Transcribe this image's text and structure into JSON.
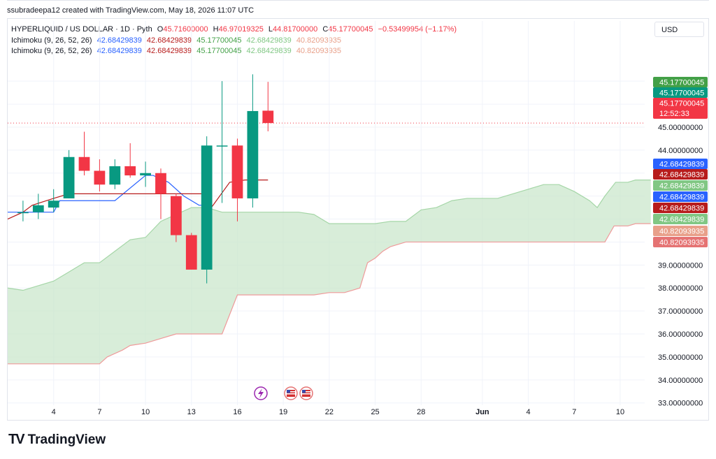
{
  "credit": "ssubradeepa12 created with TradingView.com, May 18, 2026 11:07 UTC",
  "currency_button": "USD",
  "brand": {
    "logo": "TV",
    "name": "TradingView"
  },
  "legend": {
    "symbol": "HYPERLIQUID / US DOLLAR · 1D · Pyth",
    "ohlc": [
      {
        "key": "O",
        "value": "45.71600000"
      },
      {
        "key": "H",
        "value": "46.97019325"
      },
      {
        "key": "L",
        "value": "44.81700000"
      },
      {
        "key": "C",
        "value": "45.17700045"
      }
    ],
    "change": "−0.53499954 (−1.17%)",
    "indicators": [
      {
        "name": "Ichimoku (9, 26, 52, 26)",
        "values": [
          "42.68429839",
          "42.68429839",
          "45.17700045",
          "42.68429839",
          "40.82093935"
        ]
      },
      {
        "name": "Ichimoku (9, 26, 52, 26)",
        "values": [
          "42.68429839",
          "42.68429839",
          "45.17700045",
          "42.68429839",
          "40.82093935"
        ]
      }
    ]
  },
  "colors": {
    "up": "#089981",
    "down": "#f23645",
    "tenkan": "#2962ff",
    "kijun": "#b71c1c",
    "chikou": "#43a047",
    "span_a": "#a5d6a7",
    "span_b": "#ef9a9a",
    "cloud": "#c8e6c9",
    "legend_ohlc": "#f23645",
    "legend_symbol": "#131722"
  },
  "price_labels": [
    {
      "text": "45.17700045",
      "color": "#43a047"
    },
    {
      "text": "45.17700045",
      "color": "#089981"
    },
    {
      "text": "45.17700045",
      "sub": "12:52:33",
      "color": "#f23645"
    },
    {
      "text": "42.68429839",
      "color": "#2962ff"
    },
    {
      "text": "42.68429839",
      "color": "#b71c1c"
    },
    {
      "text": "42.68429839",
      "color": "#81c784"
    },
    {
      "text": "42.68429839",
      "color": "#2962ff"
    },
    {
      "text": "42.68429839",
      "color": "#b71c1c"
    },
    {
      "text": "42.68429839",
      "color": "#81c784"
    },
    {
      "text": "40.82093935",
      "color": "#e8a08a"
    },
    {
      "text": "40.82093935",
      "color": "#e57373"
    }
  ],
  "chart_data": {
    "type": "candlestick",
    "title": "HYPERLIQUID / US DOLLAR · 1D · Pyth",
    "y_ticks": [
      33,
      34,
      35,
      36,
      37,
      38,
      39,
      40,
      41,
      42,
      43,
      44,
      45,
      46,
      47
    ],
    "y_tick_labels": [
      "33.00000000",
      "34.00000000",
      "35.00000000",
      "36.00000000",
      "37.00000000",
      "38.00000000",
      "39.00000000",
      "40.00000000",
      "41.00000000",
      "42.00000000",
      "43.00000000",
      "44.00000000",
      "45.00000000",
      "46.00000000",
      "47.00000000"
    ],
    "ylim": [
      32.9,
      48.1
    ],
    "x_ticks": [
      "4",
      "7",
      "10",
      "13",
      "16",
      "19",
      "22",
      "25",
      "28",
      "Jun",
      "4",
      "7",
      "10"
    ],
    "x_tick_days": [
      4,
      7,
      10,
      13,
      16,
      19,
      22,
      25,
      28,
      32,
      35,
      38,
      41
    ],
    "xlim": [
      1,
      42.6
    ],
    "candles": [
      {
        "day": 2,
        "o": 41.3,
        "h": 41.8,
        "l": 40.9,
        "c": 41.3
      },
      {
        "day": 3,
        "o": 41.3,
        "h": 42.1,
        "l": 41.0,
        "c": 41.6
      },
      {
        "day": 4,
        "o": 41.5,
        "h": 42.3,
        "l": 41.3,
        "c": 41.8
      },
      {
        "day": 5,
        "o": 41.9,
        "h": 44.0,
        "l": 41.9,
        "c": 43.7
      },
      {
        "day": 6,
        "o": 43.7,
        "h": 44.8,
        "l": 42.9,
        "c": 43.1
      },
      {
        "day": 7,
        "o": 43.1,
        "h": 43.6,
        "l": 42.2,
        "c": 42.5
      },
      {
        "day": 8,
        "o": 42.5,
        "h": 43.6,
        "l": 42.3,
        "c": 43.3
      },
      {
        "day": 9,
        "o": 43.3,
        "h": 44.3,
        "l": 42.8,
        "c": 42.9
      },
      {
        "day": 10,
        "o": 42.9,
        "h": 43.5,
        "l": 42.4,
        "c": 43.0
      },
      {
        "day": 11,
        "o": 43.0,
        "h": 43.2,
        "l": 41.0,
        "c": 42.1
      },
      {
        "day": 12,
        "o": 42.0,
        "h": 42.1,
        "l": 40.0,
        "c": 40.3
      },
      {
        "day": 13,
        "o": 40.3,
        "h": 40.4,
        "l": 38.8,
        "c": 38.8
      },
      {
        "day": 14,
        "o": 38.8,
        "h": 44.6,
        "l": 38.2,
        "c": 44.2
      },
      {
        "day": 15,
        "o": 44.2,
        "h": 47.0,
        "l": 41.7,
        "c": 44.2
      },
      {
        "day": 16,
        "o": 44.2,
        "h": 44.5,
        "l": 40.9,
        "c": 41.9
      },
      {
        "day": 17,
        "o": 41.9,
        "h": 47.3,
        "l": 41.5,
        "c": 45.7
      },
      {
        "day": 18,
        "o": 45.716,
        "h": 46.97019325,
        "l": 44.817,
        "c": 45.17700045
      }
    ],
    "series": [
      {
        "name": "Tenkan",
        "color": "#2962ff",
        "points": [
          [
            1,
            41.3
          ],
          [
            4,
            41.3
          ],
          [
            4.4,
            41.8
          ],
          [
            8,
            41.8
          ],
          [
            10,
            42.9
          ],
          [
            10.5,
            42.9
          ],
          [
            11.5,
            42.6
          ],
          [
            12.5,
            42.0
          ],
          [
            13.5,
            41.6
          ],
          [
            14,
            41.6
          ]
        ]
      },
      {
        "name": "Kijun",
        "color": "#b71c1c",
        "points": [
          [
            1,
            41.0
          ],
          [
            2,
            41.3
          ],
          [
            2.6,
            41.6
          ],
          [
            4,
            41.9
          ],
          [
            5,
            42.1
          ],
          [
            13.5,
            42.1
          ],
          [
            13.8,
            42.1
          ],
          [
            14.3,
            41.5
          ],
          [
            15.5,
            42.6
          ],
          [
            16.5,
            42.7
          ],
          [
            18,
            42.7
          ]
        ]
      },
      {
        "name": "Span A",
        "color": "#a5d6a7",
        "points": [
          [
            1,
            38.0
          ],
          [
            2,
            37.9
          ],
          [
            4,
            38.3
          ],
          [
            5,
            38.7
          ],
          [
            6,
            39.1
          ],
          [
            7,
            39.1
          ],
          [
            8,
            39.6
          ],
          [
            9,
            40.1
          ],
          [
            10,
            40.2
          ],
          [
            11,
            40.9
          ],
          [
            12,
            41.2
          ],
          [
            13,
            41.5
          ],
          [
            14,
            41.5
          ],
          [
            15,
            41.3
          ],
          [
            16,
            41.3
          ],
          [
            17,
            41.3
          ],
          [
            18,
            41.3
          ],
          [
            19,
            41.3
          ],
          [
            20,
            41.3
          ],
          [
            21,
            41.2
          ],
          [
            22,
            40.8
          ],
          [
            23,
            40.8
          ],
          [
            24,
            40.8
          ],
          [
            25,
            40.8
          ],
          [
            26,
            40.9
          ],
          [
            27,
            40.9
          ],
          [
            28,
            41.4
          ],
          [
            29,
            41.5
          ],
          [
            30,
            41.8
          ],
          [
            31,
            41.9
          ],
          [
            33,
            41.9
          ],
          [
            35,
            42.3
          ],
          [
            36,
            42.5
          ],
          [
            37,
            42.5
          ],
          [
            38,
            42.2
          ],
          [
            39,
            41.8
          ],
          [
            39.5,
            41.5
          ],
          [
            40,
            42.0
          ],
          [
            40.7,
            42.6
          ],
          [
            41.5,
            42.6
          ],
          [
            42,
            42.7
          ],
          [
            43,
            42.7
          ]
        ]
      },
      {
        "name": "Span B",
        "color": "#ef9a9a",
        "points": [
          [
            1,
            34.7
          ],
          [
            7,
            34.7
          ],
          [
            7.5,
            35.0
          ],
          [
            8.5,
            35.3
          ],
          [
            9,
            35.5
          ],
          [
            10,
            35.6
          ],
          [
            11,
            35.8
          ],
          [
            12,
            36.0
          ],
          [
            13,
            36.0
          ],
          [
            14,
            36.0
          ],
          [
            15,
            36.0
          ],
          [
            16,
            37.7
          ],
          [
            17,
            37.7
          ],
          [
            20,
            37.7
          ],
          [
            21,
            37.7
          ],
          [
            22,
            37.8
          ],
          [
            23,
            37.8
          ],
          [
            24,
            38.0
          ],
          [
            24.5,
            39.1
          ],
          [
            25,
            39.3
          ],
          [
            25.5,
            39.6
          ],
          [
            26,
            39.8
          ],
          [
            27,
            40.0
          ],
          [
            40,
            40.0
          ],
          [
            40.6,
            40.7
          ],
          [
            41.5,
            40.7
          ],
          [
            42,
            40.8
          ],
          [
            43,
            40.8
          ]
        ]
      }
    ]
  }
}
